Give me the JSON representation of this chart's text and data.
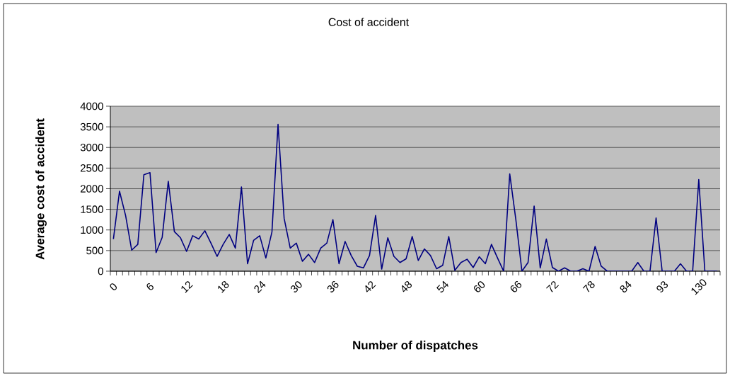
{
  "chart_data": {
    "type": "line",
    "title": "Cost of accident",
    "xlabel": "Number of dispatches",
    "ylabel": "Average cost of accident",
    "categories": [
      "0",
      null,
      null,
      null,
      null,
      null,
      "6",
      null,
      null,
      null,
      null,
      null,
      "12",
      null,
      null,
      null,
      null,
      null,
      "18",
      null,
      null,
      null,
      null,
      null,
      "24",
      null,
      null,
      null,
      null,
      null,
      "30",
      null,
      null,
      null,
      null,
      null,
      "36",
      null,
      null,
      null,
      null,
      null,
      "42",
      null,
      null,
      null,
      null,
      null,
      "48",
      null,
      null,
      null,
      null,
      null,
      "54",
      null,
      null,
      null,
      null,
      null,
      "60",
      null,
      null,
      null,
      null,
      null,
      "66",
      null,
      null,
      null,
      null,
      null,
      "72",
      null,
      null,
      null,
      null,
      null,
      "78",
      null,
      null,
      null,
      null,
      null,
      "84",
      null,
      null,
      null,
      null,
      null,
      "93",
      null,
      null,
      null,
      null,
      null,
      "130",
      null,
      null,
      null
    ],
    "values": [
      780,
      1940,
      1350,
      510,
      650,
      2340,
      2390,
      450,
      820,
      2180,
      960,
      810,
      480,
      860,
      780,
      980,
      680,
      360,
      650,
      890,
      560,
      2040,
      180,
      750,
      860,
      320,
      950,
      3560,
      1280,
      560,
      680,
      240,
      410,
      210,
      560,
      680,
      1250,
      180,
      720,
      380,
      120,
      80,
      380,
      1350,
      50,
      810,
      360,
      210,
      300,
      840,
      260,
      540,
      380,
      60,
      140,
      840,
      20,
      210,
      290,
      90,
      350,
      180,
      650,
      320,
      0,
      2360,
      1250,
      0,
      210,
      1580,
      80,
      780,
      90,
      0,
      80,
      0,
      0,
      60,
      0,
      600,
      120,
      0,
      0,
      0,
      0,
      0,
      210,
      0,
      0,
      1290,
      0,
      0,
      0,
      180,
      0,
      0,
      2220,
      0,
      0,
      0
    ],
    "color": "#000080",
    "ylim": [
      0,
      4000
    ],
    "yticks": [
      0,
      500,
      1000,
      1500,
      2000,
      2500,
      3000,
      3500,
      4000
    ],
    "grid": "y"
  }
}
